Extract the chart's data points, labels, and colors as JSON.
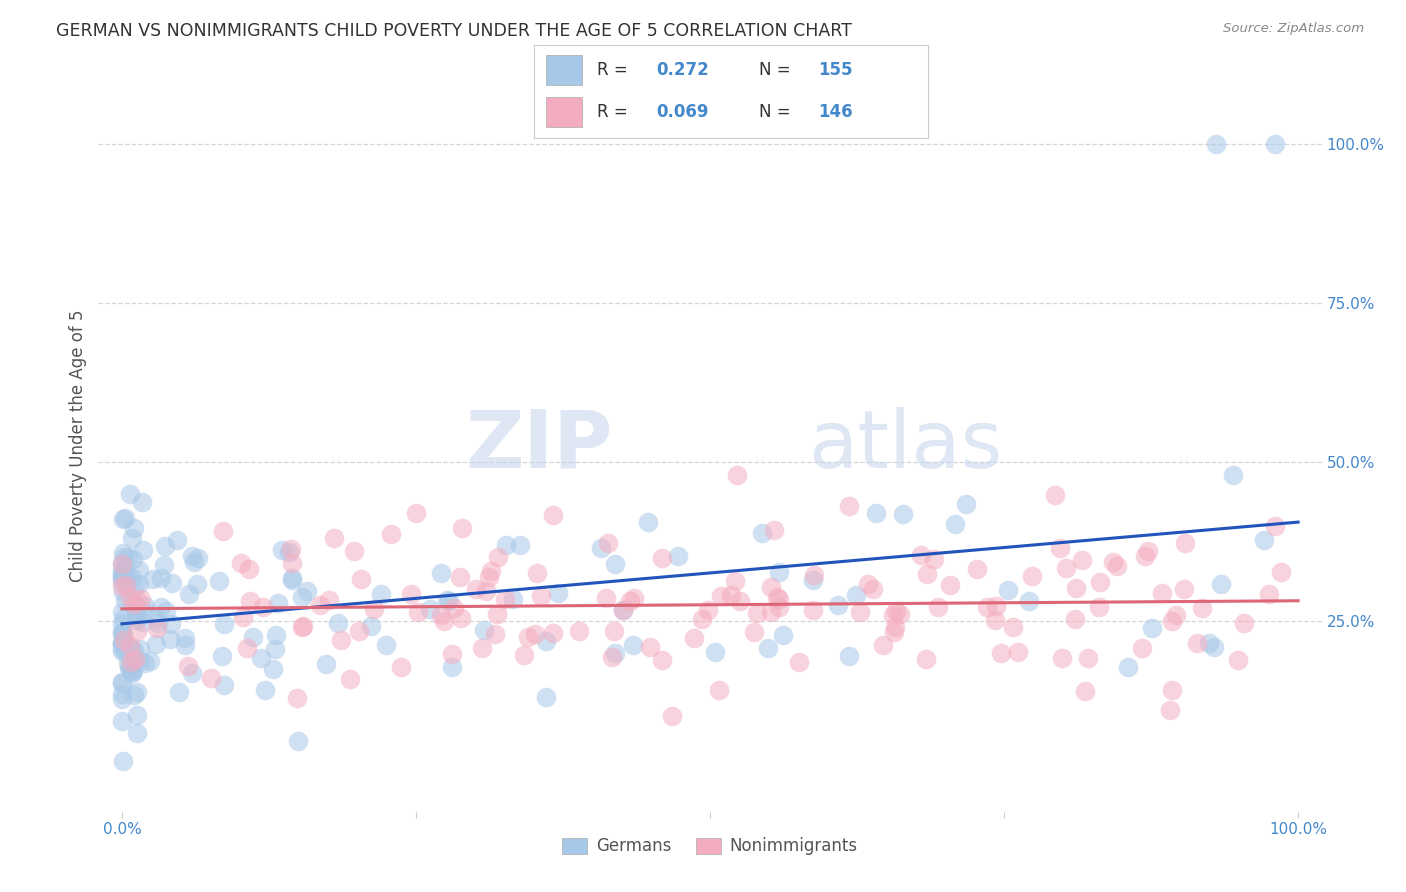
{
  "title": "GERMAN VS NONIMMIGRANTS CHILD POVERTY UNDER THE AGE OF 5 CORRELATION CHART",
  "source": "Source: ZipAtlas.com",
  "ylabel": "Child Poverty Under the Age of 5",
  "watermark_zip": "ZIP",
  "watermark_atlas": "atlas",
  "legend_german_R": "0.272",
  "legend_german_N": "155",
  "legend_nonimm_R": "0.069",
  "legend_nonimm_N": "146",
  "german_color": "#a8c8e8",
  "nonimm_color": "#f4adc0",
  "german_line_color": "#2255bb",
  "nonimm_line_color": "#dd6677",
  "title_color": "#333333",
  "tick_color": "#4488cc",
  "background_color": "#ffffff",
  "grid_color": "#cccccc",
  "ylabel_color": "#555555",
  "source_color": "#888888",
  "legend_text_color": "#333333",
  "legend_value_color": "#4488cc"
}
